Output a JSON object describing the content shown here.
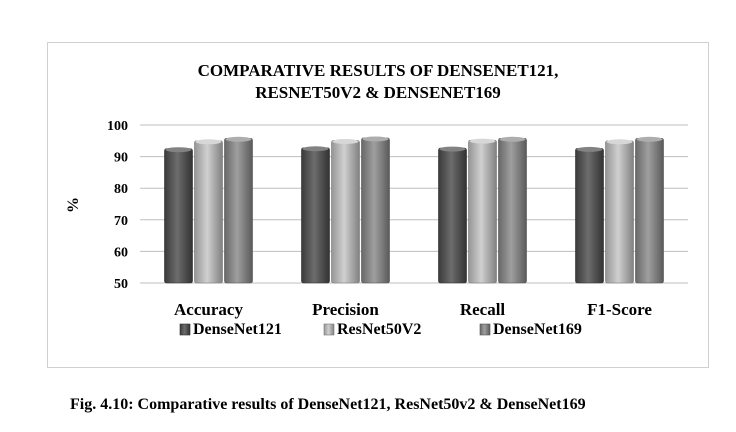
{
  "chart_data": {
    "type": "bar",
    "title": [
      "COMPARATIVE RESULTS OF DENSENET121,",
      "RESNET50V2 & DENSENET169"
    ],
    "ylabel": "%",
    "xlabel": "",
    "ylim": [
      50,
      100
    ],
    "yticks": [
      50,
      60,
      70,
      80,
      90,
      100
    ],
    "categories": [
      "Accuracy",
      "Precision",
      "Recall",
      "F1-Score"
    ],
    "series": [
      {
        "name": "DenseNet121",
        "values": [
          92.5,
          92.8,
          92.7,
          92.6
        ],
        "color": "#4d4d4d"
      },
      {
        "name": "ResNet50V2",
        "values": [
          95.0,
          95.1,
          95.2,
          95.0
        ],
        "color": "#c6c6c6"
      },
      {
        "name": "DenseNet169",
        "values": [
          95.8,
          95.9,
          95.8,
          95.8
        ],
        "color": "#8a8a8a"
      }
    ],
    "grid": true,
    "legend_position": "bottom"
  },
  "caption": "Fig. 4.10:  Comparative results of DenseNet121, ResNet50v2 & DenseNet169"
}
